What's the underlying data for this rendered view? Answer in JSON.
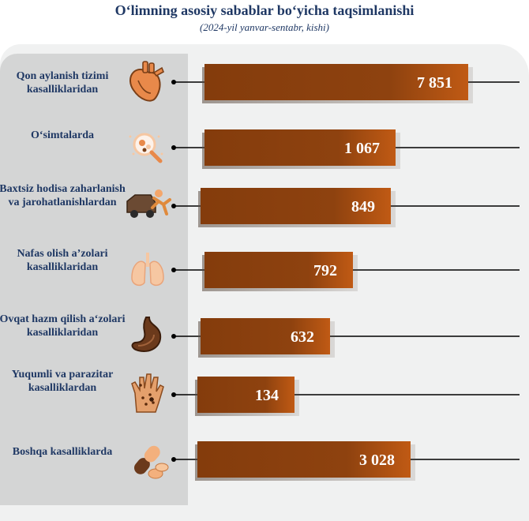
{
  "chart_data": {
    "type": "bar",
    "orientation": "horizontal",
    "title": "O‘limning asosiy sabablar bo‘yicha taqsimlanishi",
    "subtitle": "(2024-yil yanvar-sentabr, kishi)",
    "categories": [
      "Qon aylanish tizimi kasalliklaridan",
      "O‘simtalarda",
      "Baxtsiz hodisa zaharlanish va jarohatlanishlardan",
      "Nafas olish a’zolari kasalliklaridan",
      "Ovqat hazm qilish a‘zolari kasalliklaridan",
      "Yuqumli va parazitar kasalliklardan",
      "Boshqa kasalliklarda"
    ],
    "values": [
      7851,
      1067,
      849,
      792,
      632,
      134,
      3028
    ],
    "value_labels": [
      "7 851",
      "1 067",
      "849",
      "792",
      "632",
      "134",
      "3 028"
    ],
    "icons": [
      "heart-icon",
      "tumor-cell-icon",
      "car-accident-icon",
      "lungs-icon",
      "stomach-icon",
      "infected-hand-icon",
      "pills-icon"
    ],
    "bar_color": "#843c0c",
    "bar_gradient_end": "#c55a11"
  }
}
